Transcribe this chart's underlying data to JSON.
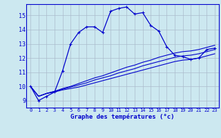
{
  "xlabel": "Graphe des températures (°c)",
  "bg_color": "#cce8f0",
  "line_color": "#0000cc",
  "grid_color": "#aabbcc",
  "ylim": [
    8.5,
    15.8
  ],
  "xlim": [
    -0.5,
    23.5
  ],
  "yticks": [
    9,
    10,
    11,
    12,
    13,
    14,
    15
  ],
  "xticks": [
    0,
    1,
    2,
    3,
    4,
    5,
    6,
    7,
    8,
    9,
    10,
    11,
    12,
    13,
    14,
    15,
    16,
    17,
    18,
    19,
    20,
    21,
    22,
    23
  ],
  "series": {
    "main": [
      10.0,
      9.0,
      9.3,
      9.6,
      11.1,
      13.0,
      13.8,
      14.2,
      14.2,
      13.8,
      15.3,
      15.5,
      15.6,
      15.1,
      15.2,
      14.3,
      13.9,
      12.8,
      12.2,
      12.1,
      11.9,
      12.0,
      12.6,
      12.7
    ],
    "line2": [
      10.0,
      9.3,
      9.5,
      9.6,
      9.75,
      9.85,
      9.95,
      10.1,
      10.25,
      10.4,
      10.55,
      10.7,
      10.85,
      11.0,
      11.15,
      11.3,
      11.45,
      11.6,
      11.75,
      11.85,
      11.9,
      12.0,
      12.15,
      12.3
    ],
    "line3": [
      10.0,
      9.3,
      9.5,
      9.65,
      9.8,
      9.95,
      10.1,
      10.25,
      10.45,
      10.6,
      10.75,
      10.95,
      11.1,
      11.25,
      11.45,
      11.6,
      11.75,
      11.9,
      12.05,
      12.15,
      12.2,
      12.3,
      12.45,
      12.6
    ],
    "line4": [
      10.0,
      9.3,
      9.5,
      9.65,
      9.85,
      10.0,
      10.2,
      10.4,
      10.6,
      10.75,
      10.95,
      11.15,
      11.35,
      11.5,
      11.7,
      11.85,
      12.05,
      12.2,
      12.35,
      12.45,
      12.5,
      12.6,
      12.75,
      12.9
    ]
  }
}
